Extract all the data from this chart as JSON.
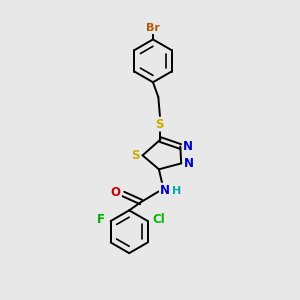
{
  "background_color": "#e8e8e8",
  "bond_color": "#000000",
  "atom_colors": {
    "Br": "#b35a00",
    "S": "#ccaa00",
    "N": "#0000cc",
    "O": "#cc0000",
    "F": "#00aa00",
    "Cl": "#00bb00",
    "H": "#00aaaa",
    "C": "#000000"
  },
  "figsize": [
    3.0,
    3.0
  ],
  "dpi": 100
}
